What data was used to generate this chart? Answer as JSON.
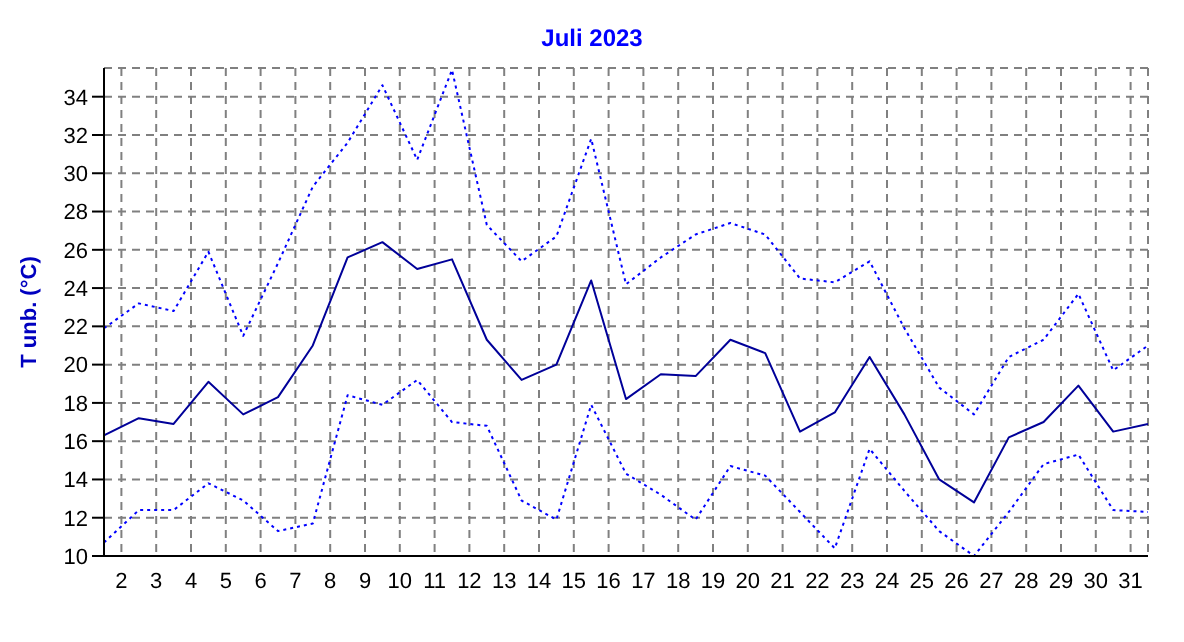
{
  "chart_data": {
    "type": "line",
    "title": "Juli 2023",
    "ylabel": "T unb. (°C)",
    "x": [
      1.5,
      2.5,
      3.5,
      4.5,
      5.5,
      6.5,
      7.5,
      8.5,
      9.5,
      10.5,
      11.5,
      12.5,
      13.5,
      14.5,
      15.5,
      16.5,
      17.5,
      18.5,
      19.5,
      20.5,
      21.5,
      22.5,
      23.5,
      24.5,
      25.5,
      26.5,
      27.5,
      28.5,
      29.5,
      30.5,
      31.5
    ],
    "series": [
      {
        "color": "#0000ff",
        "line_style": "dotted",
        "values": [
          21.9,
          23.2,
          22.8,
          25.9,
          21.5,
          25.3,
          29.3,
          31.6,
          34.6,
          30.7,
          35.4,
          27.3,
          25.4,
          26.7,
          31.8,
          24.2,
          25.6,
          26.8,
          27.4,
          26.8,
          24.5,
          24.3,
          25.4,
          21.9,
          18.8,
          17.4,
          20.4,
          21.3,
          23.7,
          19.7,
          21.0
        ]
      },
      {
        "color": "#000099",
        "line_style": "solid",
        "values": [
          16.3,
          17.2,
          16.9,
          19.1,
          17.4,
          18.3,
          21.0,
          25.6,
          26.4,
          25.0,
          25.5,
          21.3,
          19.2,
          20.0,
          24.4,
          18.2,
          19.5,
          19.4,
          21.3,
          20.6,
          16.5,
          17.5,
          20.4,
          17.4,
          14.0,
          12.8,
          16.2,
          17.0,
          18.9,
          16.5,
          16.9
        ]
      },
      {
        "color": "#0000ff",
        "line_style": "dotted",
        "values": [
          10.7,
          12.4,
          12.4,
          13.8,
          12.9,
          11.3,
          11.7,
          18.4,
          17.9,
          19.2,
          17.0,
          16.8,
          12.9,
          11.9,
          17.9,
          14.3,
          13.2,
          11.9,
          14.7,
          14.2,
          12.3,
          10.4,
          15.6,
          13.4,
          11.3,
          10.0,
          12.3,
          14.8,
          15.3,
          12.4,
          12.3
        ]
      }
    ],
    "xlim": [
      1.5,
      31.5
    ],
    "xticks": [
      2,
      3,
      4,
      5,
      6,
      7,
      8,
      9,
      10,
      11,
      12,
      13,
      14,
      15,
      16,
      17,
      18,
      19,
      20,
      21,
      22,
      23,
      24,
      25,
      26,
      27,
      28,
      29,
      30,
      31
    ],
    "ylim": [
      10,
      35.5
    ],
    "yticks": [
      10,
      12,
      14,
      16,
      18,
      20,
      22,
      24,
      26,
      28,
      30,
      32,
      34
    ],
    "grid": true,
    "marker": "none"
  }
}
